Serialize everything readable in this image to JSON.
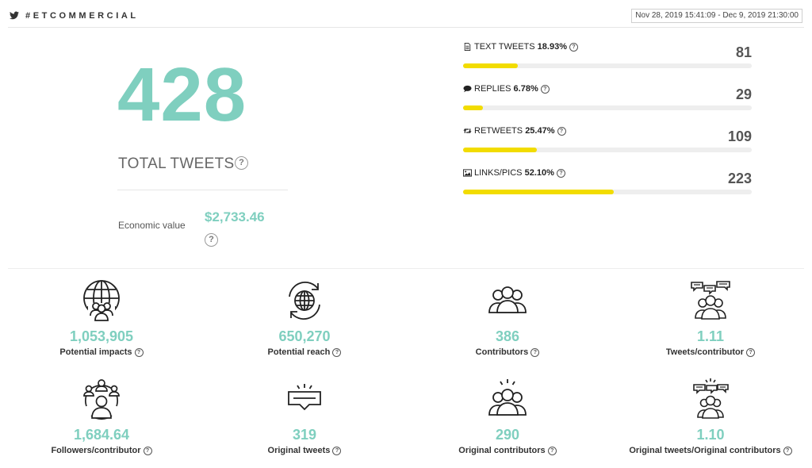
{
  "header": {
    "hashtag": "#ETCOMMERCIAL",
    "date_range": "Nov 28, 2019 15:41:09 - Dec 9, 2019 21:30:00",
    "icons": [
      "twitter-icon",
      "calendar-icon"
    ]
  },
  "summary": {
    "total": "428",
    "total_label": "TOTAL TWEETS",
    "economic_label": "Economic value",
    "economic_value": "$2,733.46",
    "help_glyph": "?"
  },
  "breakdown": [
    {
      "name": "TEXT TWEETS",
      "pct": "18.93%",
      "count": "81",
      "fraction": 0.1893,
      "icon": "document-icon"
    },
    {
      "name": "REPLIES",
      "pct": "6.78%",
      "count": "29",
      "fraction": 0.0678,
      "icon": "chat-icon"
    },
    {
      "name": "RETWEETS",
      "pct": "25.47%",
      "count": "109",
      "fraction": 0.2547,
      "icon": "retweet-icon"
    },
    {
      "name": "LINKS/PICS",
      "pct": "52.10%",
      "count": "223",
      "fraction": 0.521,
      "icon": "image-icon"
    }
  ],
  "stats": [
    {
      "value": "1,053,905",
      "label": "Potential impacts",
      "icon": "globe-group-icon"
    },
    {
      "value": "650,270",
      "label": "Potential reach",
      "icon": "globe-cycle-icon"
    },
    {
      "value": "386",
      "label": "Contributors",
      "icon": "group-icon"
    },
    {
      "value": "1.11",
      "label": "Tweets/contributor",
      "icon": "group-speech-icon"
    },
    {
      "value": "1,684.64",
      "label": "Followers/contributor",
      "icon": "network-icon"
    },
    {
      "value": "319",
      "label": "Original tweets",
      "icon": "message-icon"
    },
    {
      "value": "290",
      "label": "Original contributors",
      "icon": "group-spark-icon"
    },
    {
      "value": "1.10",
      "label": "Original tweets/Original contributors",
      "icon": "person-speech-spark-icon"
    }
  ],
  "colors": {
    "accent": "#7fcfbf",
    "bar": "#f2dc00",
    "track": "#eeeeee"
  }
}
